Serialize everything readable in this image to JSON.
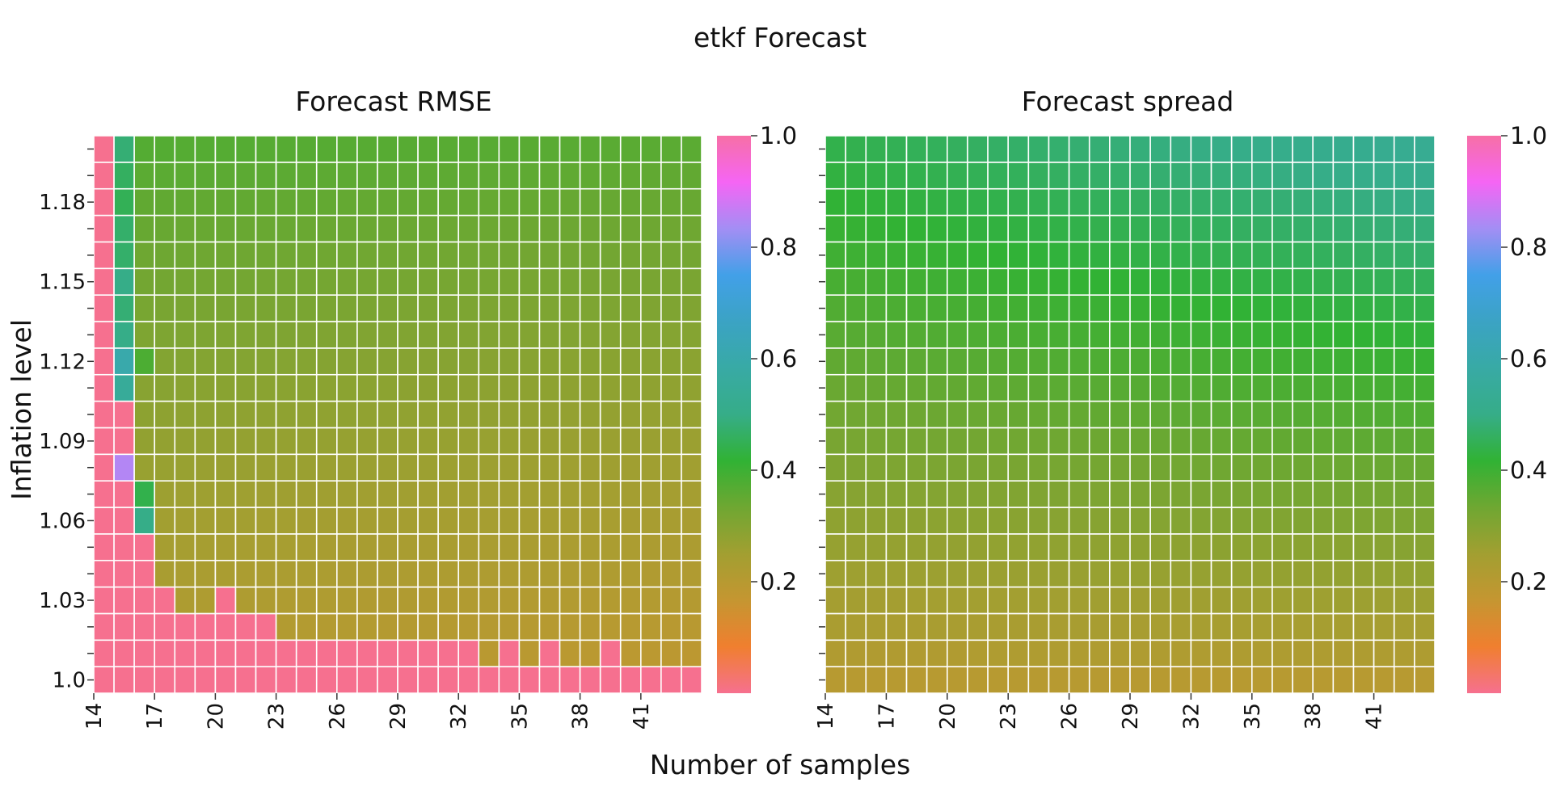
{
  "figure": {
    "title": "etkf Forecast",
    "xlabel": "Number of samples",
    "ylabel": "Inflation level"
  },
  "colors": {
    "cell_border": "#ffffff",
    "colormap": [
      "#f6708f",
      "#f07f2f",
      "#c59631",
      "#a29f31",
      "#6fa732",
      "#31b234",
      "#36ad88",
      "#38aaa5",
      "#3ba3c4",
      "#42a0e8",
      "#a38ef4",
      "#f565f4",
      "#f76fa6"
    ]
  },
  "chart_data": [
    {
      "type": "heatmap",
      "title": "Forecast RMSE",
      "x": [
        14,
        15,
        16,
        17,
        18,
        19,
        20,
        21,
        22,
        23,
        24,
        25,
        26,
        27,
        28,
        29,
        30,
        31,
        32,
        33,
        34,
        35,
        36,
        37,
        38,
        39,
        40,
        41,
        42,
        43
      ],
      "y": [
        1.0,
        1.01,
        1.02,
        1.03,
        1.04,
        1.05,
        1.06,
        1.07,
        1.08,
        1.09,
        1.1,
        1.11,
        1.12,
        1.13,
        1.14,
        1.15,
        1.16,
        1.17,
        1.18,
        1.19,
        1.2
      ],
      "x_tick_labels": [
        "14",
        "17",
        "20",
        "23",
        "26",
        "29",
        "32",
        "35",
        "38",
        "41"
      ],
      "y_tick_labels": [
        "1.0",
        "1.03",
        "1.06",
        "1.09",
        "1.12",
        "1.15",
        "1.18"
      ],
      "value_range": [
        0.0,
        1.0
      ],
      "colorbar_ticks": [
        "0.2",
        "0.4",
        "0.6",
        "0.8",
        "1.0"
      ],
      "model": {
        "base_top_left": 0.4,
        "base_bottom_right": 0.2,
        "notes": "values >= 1.0 shown in saturated pink"
      },
      "pink_cells": [
        [
          0,
          0
        ],
        [
          1,
          0
        ],
        [
          2,
          0
        ],
        [
          3,
          0
        ],
        [
          4,
          0
        ],
        [
          5,
          0
        ],
        [
          6,
          0
        ],
        [
          7,
          0
        ],
        [
          8,
          0
        ],
        [
          9,
          0
        ],
        [
          10,
          0
        ],
        [
          11,
          0
        ],
        [
          12,
          0
        ],
        [
          13,
          0
        ],
        [
          14,
          0
        ],
        [
          15,
          0
        ],
        [
          16,
          0
        ],
        [
          17,
          0
        ],
        [
          18,
          0
        ],
        [
          19,
          0
        ],
        [
          20,
          0
        ],
        [
          21,
          0
        ],
        [
          22,
          0
        ],
        [
          23,
          0
        ],
        [
          24,
          0
        ],
        [
          25,
          0
        ],
        [
          26,
          0
        ],
        [
          27,
          0
        ],
        [
          28,
          0
        ],
        [
          29,
          0
        ],
        [
          0,
          1
        ],
        [
          1,
          1
        ],
        [
          2,
          1
        ],
        [
          3,
          1
        ],
        [
          4,
          1
        ],
        [
          5,
          1
        ],
        [
          6,
          1
        ],
        [
          7,
          1
        ],
        [
          8,
          1
        ],
        [
          9,
          1
        ],
        [
          10,
          1
        ],
        [
          11,
          1
        ],
        [
          12,
          1
        ],
        [
          13,
          1
        ],
        [
          14,
          1
        ],
        [
          15,
          1
        ],
        [
          16,
          1
        ],
        [
          17,
          1
        ],
        [
          18,
          1
        ],
        [
          20,
          1
        ],
        [
          22,
          1
        ],
        [
          25,
          1
        ],
        [
          0,
          2
        ],
        [
          1,
          2
        ],
        [
          2,
          2
        ],
        [
          3,
          2
        ],
        [
          4,
          2
        ],
        [
          5,
          2
        ],
        [
          6,
          2
        ],
        [
          7,
          2
        ],
        [
          8,
          2
        ],
        [
          0,
          3
        ],
        [
          1,
          3
        ],
        [
          2,
          3
        ],
        [
          3,
          3
        ],
        [
          6,
          3
        ],
        [
          0,
          4
        ],
        [
          1,
          4
        ],
        [
          2,
          4
        ],
        [
          0,
          5
        ],
        [
          1,
          5
        ],
        [
          2,
          5
        ],
        [
          0,
          6
        ],
        [
          1,
          6
        ],
        [
          0,
          7
        ],
        [
          1,
          7
        ],
        [
          0,
          8
        ],
        [
          0,
          9
        ],
        [
          1,
          9
        ],
        [
          0,
          10
        ],
        [
          1,
          10
        ],
        [
          0,
          11
        ],
        [
          0,
          12
        ],
        [
          0,
          13
        ],
        [
          0,
          14
        ],
        [
          0,
          15
        ],
        [
          0,
          16
        ],
        [
          0,
          17
        ],
        [
          0,
          18
        ],
        [
          0,
          19
        ],
        [
          0,
          20
        ]
      ],
      "special_cells": [
        {
          "x": 1,
          "y": 8,
          "value": 0.85
        },
        {
          "x": 1,
          "y": 12,
          "value": 0.6
        },
        {
          "x": 1,
          "y": 11,
          "value": 0.55
        },
        {
          "x": 1,
          "y": 13,
          "value": 0.5
        },
        {
          "x": 1,
          "y": 14,
          "value": 0.48
        },
        {
          "x": 1,
          "y": 15,
          "value": 0.5
        },
        {
          "x": 1,
          "y": 16,
          "value": 0.47
        },
        {
          "x": 1,
          "y": 17,
          "value": 0.47
        },
        {
          "x": 1,
          "y": 18,
          "value": 0.45
        },
        {
          "x": 1,
          "y": 19,
          "value": 0.46
        },
        {
          "x": 1,
          "y": 20,
          "value": 0.48
        },
        {
          "x": 2,
          "y": 6,
          "value": 0.5
        },
        {
          "x": 2,
          "y": 7,
          "value": 0.44
        },
        {
          "x": 2,
          "y": 12,
          "value": 0.38
        }
      ]
    },
    {
      "type": "heatmap",
      "title": "Forecast spread",
      "x": [
        14,
        15,
        16,
        17,
        18,
        19,
        20,
        21,
        22,
        23,
        24,
        25,
        26,
        27,
        28,
        29,
        30,
        31,
        32,
        33,
        34,
        35,
        36,
        37,
        38,
        39,
        40,
        41,
        42,
        43
      ],
      "y": [
        1.0,
        1.01,
        1.02,
        1.03,
        1.04,
        1.05,
        1.06,
        1.07,
        1.08,
        1.09,
        1.1,
        1.11,
        1.12,
        1.13,
        1.14,
        1.15,
        1.16,
        1.17,
        1.18,
        1.19,
        1.2
      ],
      "x_tick_labels": [
        "14",
        "17",
        "20",
        "23",
        "26",
        "29",
        "32",
        "35",
        "38",
        "41"
      ],
      "y_tick_labels": [],
      "value_range": [
        0.0,
        1.0
      ],
      "colorbar_ticks": [
        "0.2",
        "0.4",
        "0.6",
        "0.8",
        "1.0"
      ],
      "model": {
        "bottom_value": 0.2,
        "top_value_left": 0.44,
        "top_value_right": 0.53
      }
    }
  ]
}
